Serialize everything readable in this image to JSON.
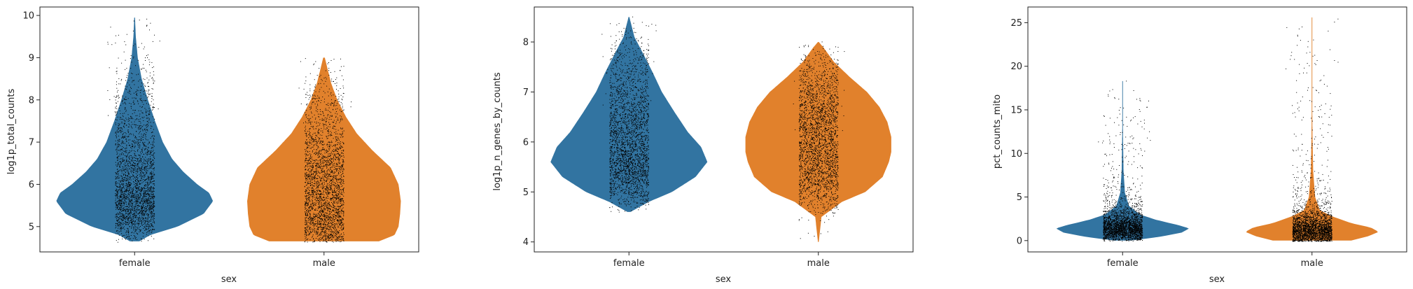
{
  "figure": {
    "colors": {
      "female": "#3274a1",
      "male": "#e1812c",
      "points": "#000000",
      "axis": "#222222"
    }
  },
  "chart_data": [
    {
      "type": "violin",
      "xlabel": "sex",
      "ylabel": "log1p_total_counts",
      "categories": [
        "female",
        "male"
      ],
      "ylim": [
        4.4,
        10.2
      ],
      "yticks": [
        5,
        6,
        7,
        8,
        9,
        10
      ],
      "grid": false,
      "series": [
        {
          "name": "female",
          "range": [
            4.65,
            9.95
          ],
          "density": [
            [
              4.65,
              0.06
            ],
            [
              4.8,
              0.2
            ],
            [
              5.0,
              0.55
            ],
            [
              5.3,
              0.88
            ],
            [
              5.6,
              1.0
            ],
            [
              5.8,
              0.95
            ],
            [
              6.0,
              0.8
            ],
            [
              6.3,
              0.62
            ],
            [
              6.6,
              0.48
            ],
            [
              7.0,
              0.36
            ],
            [
              7.5,
              0.26
            ],
            [
              8.0,
              0.17
            ],
            [
              8.5,
              0.09
            ],
            [
              9.0,
              0.04
            ],
            [
              9.5,
              0.015
            ],
            [
              9.95,
              0.005
            ]
          ]
        },
        {
          "name": "male",
          "range": [
            4.65,
            9.0
          ],
          "density": [
            [
              4.65,
              0.7
            ],
            [
              4.8,
              0.9
            ],
            [
              5.0,
              0.95
            ],
            [
              5.3,
              0.97
            ],
            [
              5.6,
              0.98
            ],
            [
              6.0,
              0.95
            ],
            [
              6.4,
              0.85
            ],
            [
              6.8,
              0.62
            ],
            [
              7.2,
              0.42
            ],
            [
              7.6,
              0.28
            ],
            [
              8.0,
              0.17
            ],
            [
              8.4,
              0.09
            ],
            [
              8.7,
              0.05
            ],
            [
              9.0,
              0.01
            ]
          ]
        }
      ]
    },
    {
      "type": "violin",
      "xlabel": "sex",
      "ylabel": "log1p_n_genes_by_counts",
      "categories": [
        "female",
        "male"
      ],
      "ylim": [
        3.8,
        8.7
      ],
      "yticks": [
        4,
        5,
        6,
        7,
        8
      ],
      "grid": false,
      "series": [
        {
          "name": "female",
          "range": [
            4.6,
            8.5
          ],
          "density": [
            [
              4.6,
              0.02
            ],
            [
              4.8,
              0.25
            ],
            [
              5.0,
              0.55
            ],
            [
              5.3,
              0.85
            ],
            [
              5.6,
              1.0
            ],
            [
              5.9,
              0.92
            ],
            [
              6.2,
              0.75
            ],
            [
              6.6,
              0.58
            ],
            [
              7.0,
              0.42
            ],
            [
              7.4,
              0.3
            ],
            [
              7.8,
              0.17
            ],
            [
              8.1,
              0.07
            ],
            [
              8.5,
              0.005
            ]
          ]
        },
        {
          "name": "male",
          "range": [
            4.0,
            8.0
          ],
          "density": [
            [
              4.0,
              0.005
            ],
            [
              4.5,
              0.04
            ],
            [
              4.8,
              0.3
            ],
            [
              5.0,
              0.6
            ],
            [
              5.3,
              0.82
            ],
            [
              5.6,
              0.9
            ],
            [
              5.8,
              0.93
            ],
            [
              6.1,
              0.93
            ],
            [
              6.4,
              0.88
            ],
            [
              6.7,
              0.78
            ],
            [
              7.0,
              0.62
            ],
            [
              7.3,
              0.4
            ],
            [
              7.6,
              0.2
            ],
            [
              7.9,
              0.06
            ],
            [
              8.0,
              0.005
            ]
          ]
        }
      ]
    },
    {
      "type": "violin",
      "xlabel": "sex",
      "ylabel": "pct_counts_mito",
      "categories": [
        "female",
        "male"
      ],
      "ylim": [
        -1.3,
        26.8
      ],
      "yticks": [
        0,
        5,
        10,
        15,
        20,
        25
      ],
      "grid": false,
      "series": [
        {
          "name": "female",
          "range": [
            0,
            18.3
          ],
          "density": [
            [
              0.0,
              0.1
            ],
            [
              0.4,
              0.45
            ],
            [
              0.9,
              0.75
            ],
            [
              1.4,
              0.85
            ],
            [
              1.8,
              0.7
            ],
            [
              2.4,
              0.42
            ],
            [
              3.0,
              0.22
            ],
            [
              4.0,
              0.08
            ],
            [
              5.5,
              0.03
            ],
            [
              8.0,
              0.012
            ],
            [
              12.0,
              0.005
            ],
            [
              16.0,
              0.002
            ],
            [
              18.3,
              0.001
            ]
          ]
        },
        {
          "name": "male",
          "range": [
            0,
            25.6
          ],
          "density": [
            [
              0.0,
              0.5
            ],
            [
              0.5,
              0.72
            ],
            [
              1.0,
              0.85
            ],
            [
              1.5,
              0.75
            ],
            [
              2.0,
              0.5
            ],
            [
              2.8,
              0.25
            ],
            [
              3.5,
              0.1
            ],
            [
              5.0,
              0.04
            ],
            [
              8.0,
              0.015
            ],
            [
              12.0,
              0.006
            ],
            [
              18.0,
              0.002
            ],
            [
              25.6,
              0.001
            ]
          ]
        }
      ]
    }
  ]
}
